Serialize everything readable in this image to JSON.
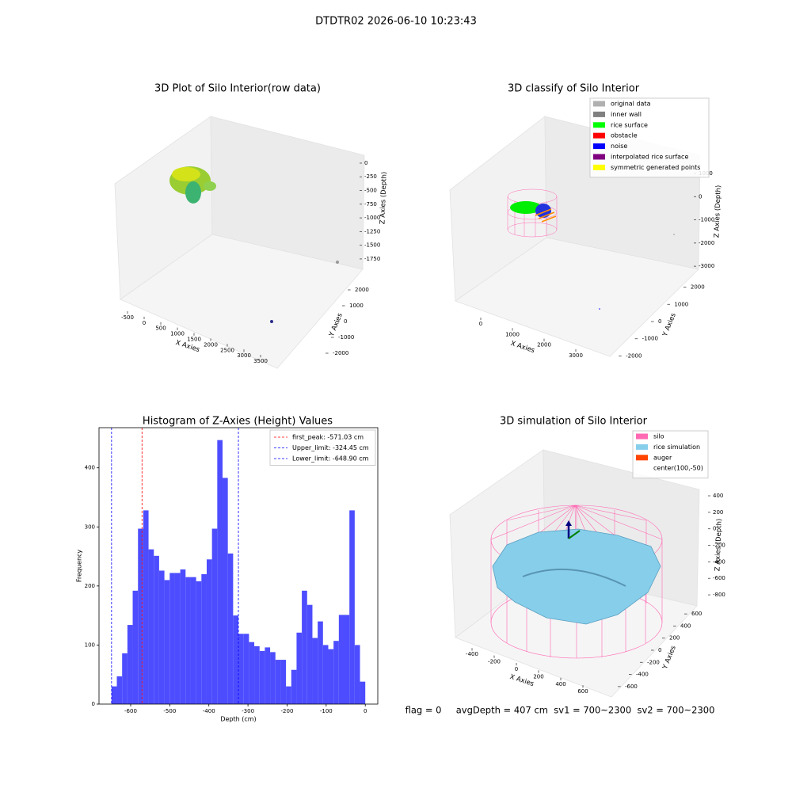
{
  "title": "DTDTR02 2026-06-10 10:23:43",
  "footer": "flag = 0     avgDepth = 407 cm  sv1 = 700~2300  sv2 = 700~2300",
  "chart_data": [
    {
      "type": "scatter3d",
      "title": "3D Plot of Silo Interior(row data)",
      "xlabel": "X Axies",
      "ylabel": "Y Axies",
      "zlabel": "Z Axies (Depth)",
      "xlim": [
        -700,
        3700
      ],
      "ylim": [
        -2300,
        2300
      ],
      "zlim": [
        -1900,
        150
      ],
      "xticks": [
        -500,
        0,
        500,
        1000,
        1500,
        2000,
        2500,
        3000,
        3500
      ],
      "yticks": [
        -2000,
        -1000,
        0,
        1000,
        2000
      ],
      "zticks": [
        0,
        -250,
        -500,
        -750,
        -1000,
        -1250,
        -1500,
        -1750
      ]
    },
    {
      "type": "scatter3d",
      "title": "3D classify of Silo Interior",
      "xlabel": "X Axies",
      "ylabel": "Y Axies",
      "zlabel": "Z Axies (Depth)",
      "xlim": [
        -500,
        3700
      ],
      "ylim": [
        -2300,
        2300
      ],
      "zlim": [
        -3200,
        1300
      ],
      "xticks": [
        0,
        1000,
        2000,
        3000
      ],
      "yticks": [
        -2000,
        -1000,
        0,
        1000,
        2000
      ],
      "zticks": [
        1000,
        0,
        -1000,
        -2000,
        -3000
      ],
      "legend": [
        {
          "name": "original data",
          "color": "#b0b0b0"
        },
        {
          "name": "inner wall",
          "color": "#808080"
        },
        {
          "name": "rice surface",
          "color": "#00ff00"
        },
        {
          "name": "obstacle",
          "color": "#ff0000"
        },
        {
          "name": "noise",
          "color": "#0000ff"
        },
        {
          "name": "interpolated rice surface",
          "color": "#800080"
        },
        {
          "name": "symmetric generated points",
          "color": "#ffff00"
        }
      ]
    },
    {
      "type": "histogram",
      "title": "Histogram of Z-Axies (Height) Values",
      "xlabel": "Depth (cm)",
      "ylabel": "Frequency",
      "color": "#4d4dff",
      "xlim": [
        -681,
        32
      ],
      "ylim": [
        0,
        468
      ],
      "xticks": [
        -600,
        -500,
        -400,
        -300,
        -200,
        -100,
        0
      ],
      "yticks": [
        0,
        100,
        200,
        300,
        400
      ],
      "bins": [
        -648.9,
        -635.38,
        -621.86,
        -608.34,
        -594.83,
        -581.31,
        -567.79,
        -554.27,
        -540.75,
        -527.23,
        -513.71,
        -500.19,
        -486.68,
        -473.16,
        -459.64,
        -446.12,
        -432.6,
        -419.08,
        -405.56,
        -392.04,
        -378.53,
        -365.01,
        -351.49,
        -337.97,
        -324.45,
        -310.93,
        -297.41,
        -283.89,
        -270.38,
        -256.86,
        -243.34,
        -229.82,
        -216.3,
        -202.78,
        -189.26,
        -175.74,
        -162.23,
        -148.71,
        -135.19,
        -121.67,
        -108.15,
        -94.63,
        -81.11,
        -67.59,
        -54.08,
        -40.56,
        -27.04,
        -13.52,
        0
      ],
      "values": [
        30,
        47,
        86,
        134,
        192,
        297,
        328,
        262,
        251,
        226,
        210,
        222,
        222,
        228,
        215,
        215,
        208,
        220,
        245,
        297,
        447,
        383,
        255,
        150,
        119,
        119,
        105,
        98,
        90,
        96,
        88,
        75,
        75,
        30,
        58,
        121,
        192,
        168,
        112,
        140,
        100,
        93,
        107,
        151,
        151,
        328,
        100,
        38
      ],
      "legend": "upper right",
      "lines": [
        {
          "name": "first_peak: -571.03 cm",
          "value": -571.03,
          "color": "#ff0000"
        },
        {
          "name": "Upper_limit: -324.45 cm",
          "value": -324.45,
          "color": "#0000ff"
        },
        {
          "name": "Lower_limit: -648.90 cm",
          "value": -648.9,
          "color": "#0000ff"
        }
      ]
    },
    {
      "type": "scatter3d",
      "title": "3D simulation of Silo Interior",
      "xlabel": "X Axies",
      "ylabel": "Y Axies",
      "zlabel": "Z Axies (Depth)",
      "xlim": [
        -550,
        750
      ],
      "ylim": [
        -700,
        700
      ],
      "zlim": [
        -950,
        500
      ],
      "xticks": [
        -400,
        -200,
        0,
        200,
        400,
        600
      ],
      "yticks": [
        -600,
        -400,
        -200,
        0,
        200,
        400,
        600
      ],
      "zticks": [
        400,
        200,
        0,
        -200,
        -400,
        -600,
        -800
      ],
      "legend": [
        {
          "name": "silo",
          "color": "#ff69b4"
        },
        {
          "name": "rice simulation",
          "color": "#87ceeb"
        },
        {
          "name": "auger",
          "color": "#ff4500"
        },
        {
          "name": "center(100,-50)"
        }
      ]
    }
  ]
}
